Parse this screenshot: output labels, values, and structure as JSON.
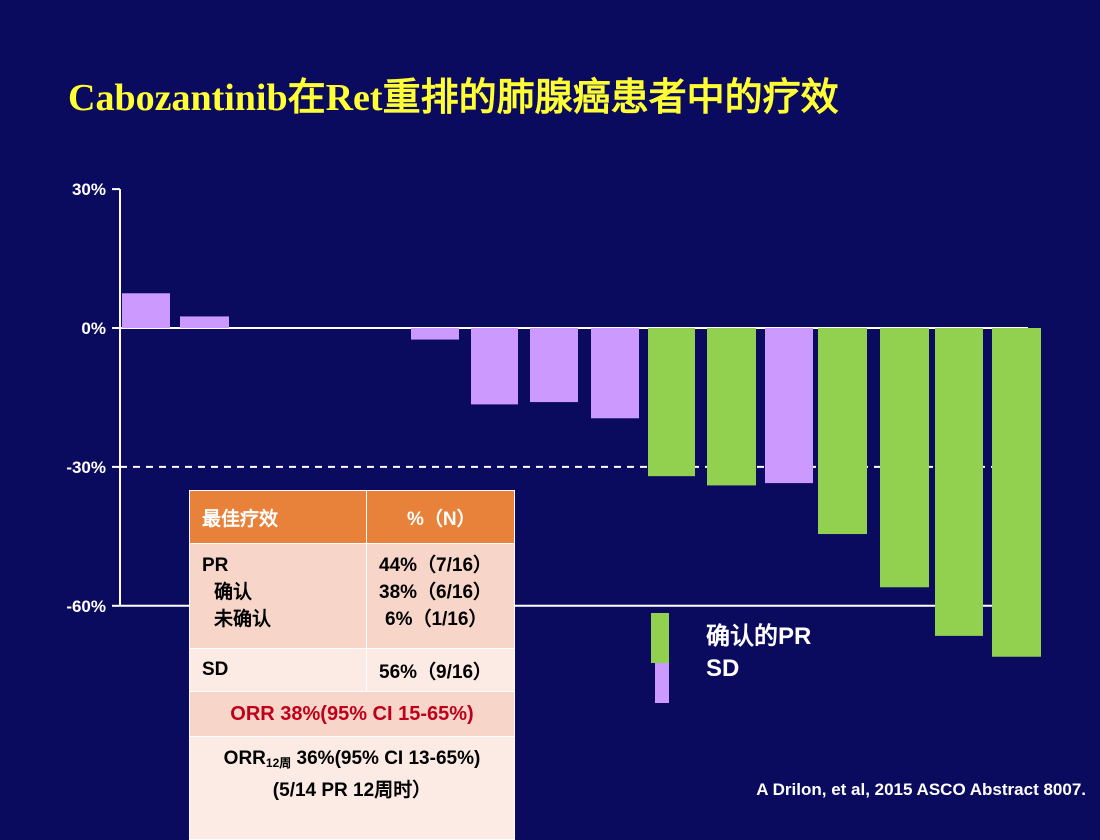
{
  "title": "Cabozantinib在Ret重排的肺腺癌患者中的疗效",
  "chart_data": {
    "type": "bar",
    "ylim": [
      -75,
      30
    ],
    "yticks": [
      "30%",
      "0%",
      "-30%",
      "-60%"
    ],
    "yticks_values": [
      30,
      0,
      -30,
      -60
    ],
    "threshold_line": -30,
    "series": [
      {
        "name": "确认的PR",
        "color": "#92d050"
      },
      {
        "name": "SD",
        "color": "#cc99ff"
      }
    ],
    "bars": [
      {
        "value": 7.5,
        "series": "SD"
      },
      {
        "value": 2.5,
        "series": "SD"
      },
      {
        "value": 0,
        "series": "SD"
      },
      {
        "value": 0,
        "series": "SD"
      },
      {
        "value": -2.5,
        "series": "SD"
      },
      {
        "value": -16.5,
        "series": "SD"
      },
      {
        "value": -16,
        "series": "SD"
      },
      {
        "value": -19.5,
        "series": "SD"
      },
      {
        "value": -32,
        "series": "确认的PR"
      },
      {
        "value": -34,
        "series": "确认的PR"
      },
      {
        "value": -33.5,
        "series": "SD"
      },
      {
        "value": -44.5,
        "series": "确认的PR"
      },
      {
        "value": -56,
        "series": "确认的PR"
      },
      {
        "value": -66.5,
        "series": "确认的PR"
      },
      {
        "value": -71,
        "series": "确认的PR"
      }
    ]
  },
  "legend": {
    "pr_label": "确认的PR",
    "sd_label": "SD",
    "pr_color": "#92d050",
    "sd_color": "#cc99ff"
  },
  "table": {
    "header": {
      "col1": "最佳疗效",
      "col2": "%（N）"
    },
    "pr": {
      "labels": [
        "PR",
        "确认",
        "未确认"
      ],
      "values": [
        "44%（7/16）",
        "38%（6/16）",
        "6%（1/16）"
      ]
    },
    "sd": {
      "label": "SD",
      "value": "56%（9/16）"
    },
    "orr": "ORR 38%(95% CI 15-65%)",
    "orr12": {
      "prefix": "ORR",
      "sub": "12周",
      "rest": " 36%(95% CI 13-65%)",
      "line2": "(5/14 PR 12周时）"
    }
  },
  "citation": "A Drilon, et al, 2015 ASCO Abstract 8007."
}
